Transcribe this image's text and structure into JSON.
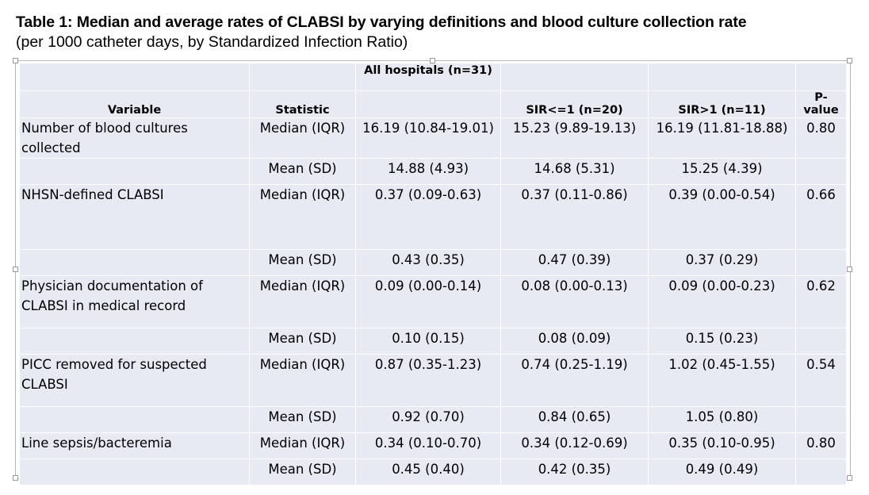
{
  "title": "Table 1: Median and average rates of CLABSI by varying definitions and blood culture collection rate",
  "subtitle": "(per 1000 catheter days, by Standardized Infection Ratio)",
  "header": {
    "all_hospitals": "All hospitals (n=31)",
    "variable": "Variable",
    "statistic": "Statistic",
    "sir_le1": "SIR<=1 (n=20)",
    "sir_gt1": "SIR>1 (n=11)",
    "pvalue": "P-value"
  },
  "rows": [
    {
      "variable": "Number of blood cultures collected",
      "statistic": "Median (IQR)",
      "all": "16.19 (10.84-19.01)",
      "sir_le1": "15.23 (9.89-19.13)",
      "sir_gt1": "16.19 (11.81-18.88)",
      "pvalue": "0.80"
    },
    {
      "variable": "",
      "statistic": "Mean (SD)",
      "all": "14.88 (4.93)",
      "sir_le1": "14.68 (5.31)",
      "sir_gt1": "15.25 (4.39)",
      "pvalue": ""
    },
    {
      "variable": "NHSN-defined CLABSI",
      "statistic": "Median (IQR)",
      "all": "0.37 (0.09-0.63)",
      "sir_le1": "0.37 (0.11-0.86)",
      "sir_gt1": "0.39 (0.00-0.54)",
      "pvalue": "0.66"
    },
    {
      "variable": "",
      "statistic": "Mean (SD)",
      "all": "0.43 (0.35)",
      "sir_le1": "0.47 (0.39)",
      "sir_gt1": "0.37 (0.29)",
      "pvalue": ""
    },
    {
      "variable": "Physician documentation  of CLABSI in medical record",
      "statistic": "Median (IQR)",
      "all": "0.09 (0.00-0.14)",
      "sir_le1": "0.08 (0.00-0.13)",
      "sir_gt1": "0.09 (0.00-0.23)",
      "pvalue": "0.62"
    },
    {
      "variable": "",
      "statistic": "Mean (SD)",
      "all": "0.10 (0.15)",
      "sir_le1": "0.08 (0.09)",
      "sir_gt1": "0.15 (0.23)",
      "pvalue": ""
    },
    {
      "variable": "PICC removed for suspected CLABSI",
      "statistic": "Median (IQR)",
      "all": "0.87 (0.35-1.23)",
      "sir_le1": "0.74 (0.25-1.19)",
      "sir_gt1": "1.02 (0.45-1.55)",
      "pvalue": "0.54"
    },
    {
      "variable": "",
      "statistic": "Mean (SD)",
      "all": "0.92 (0.70)",
      "sir_le1": "0.84 (0.65)",
      "sir_gt1": "1.05 (0.80)",
      "pvalue": ""
    },
    {
      "variable": "Line sepsis/bacteremia",
      "statistic": "Median (IQR)",
      "all": "0.34 (0.10-0.70)",
      "sir_le1": "0.34 (0.12-0.69)",
      "sir_gt1": "0.35 (0.10-0.95)",
      "pvalue": "0.80"
    },
    {
      "variable": "",
      "statistic": "Mean (SD)",
      "all": "0.45 (0.40)",
      "sir_le1": "0.42 (0.35)",
      "sir_gt1": "0.49 (0.49)",
      "pvalue": ""
    }
  ]
}
